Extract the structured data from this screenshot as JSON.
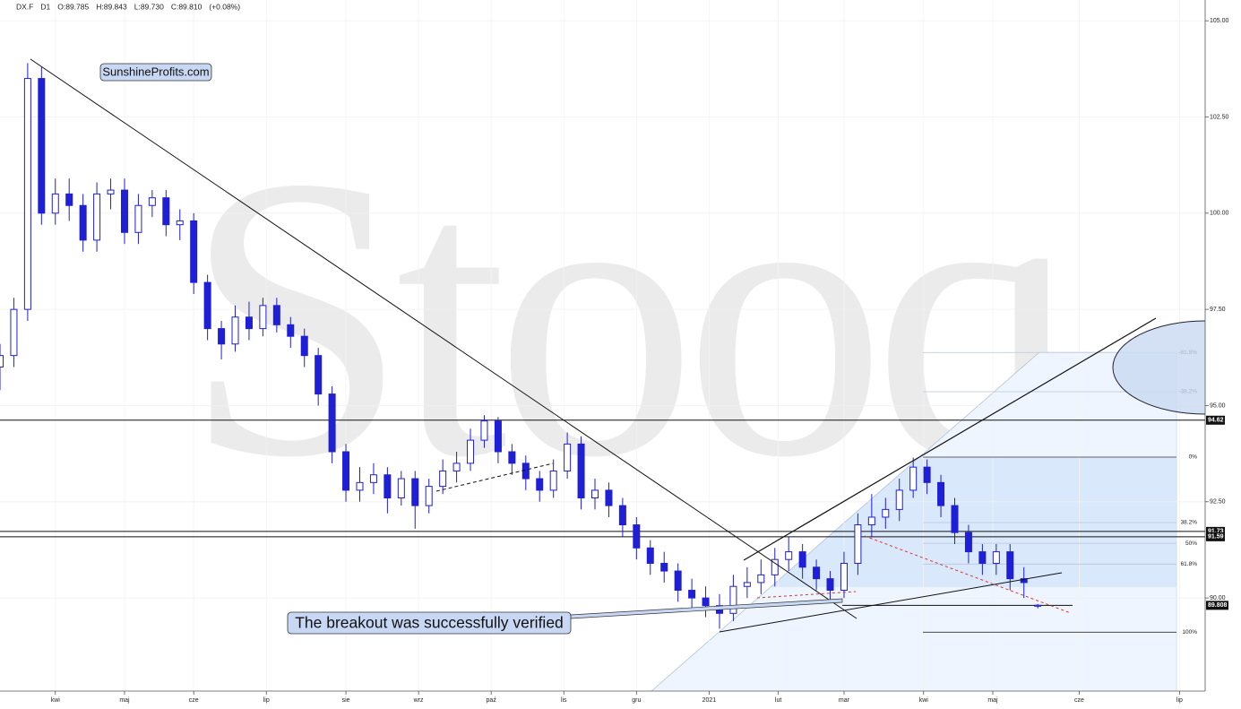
{
  "chart_data": {
    "type": "candlestick",
    "header": {
      "symbol": "DX.F",
      "interval": "D1",
      "ohlc_text": [
        "O:89.785",
        "H:89.843",
        "L:89.730",
        "C:89.810",
        "(+0.08%)"
      ]
    },
    "watermark": "Stooq",
    "annotations": [
      "SunshineProfits.com",
      "The breakout was successfully verified"
    ],
    "color": "#1f1fd6",
    "grid": true,
    "ylim": [
      87.58,
      105.54
    ],
    "yticks": [
      {
        "value": 90,
        "label": "90.00"
      },
      {
        "value": 92.5,
        "label": "92.50"
      },
      {
        "value": 95,
        "label": "95.00"
      },
      {
        "value": 97.5,
        "label": "97.50"
      },
      {
        "value": 100,
        "label": "100.00"
      },
      {
        "value": 102.5,
        "label": "102.50"
      },
      {
        "value": 105,
        "label": "105.00"
      }
    ],
    "xlim": [
      -16,
      332.4
    ],
    "xticks": [
      {
        "value": 0,
        "label": "kwi"
      },
      {
        "value": 20,
        "label": "maj"
      },
      {
        "value": 40,
        "label": "cze"
      },
      {
        "value": 61,
        "label": "lip"
      },
      {
        "value": 84,
        "label": "sie"
      },
      {
        "value": 105,
        "label": "wrz"
      },
      {
        "value": 126,
        "label": "paź"
      },
      {
        "value": 147,
        "label": "lis"
      },
      {
        "value": 168,
        "label": "gru"
      },
      {
        "value": 189,
        "label": "2021"
      },
      {
        "value": 209,
        "label": "lut"
      },
      {
        "value": 228,
        "label": "mar"
      },
      {
        "value": 251,
        "label": "kwi"
      },
      {
        "value": 271,
        "label": "maj"
      },
      {
        "value": 296,
        "label": "cze"
      },
      {
        "value": 325,
        "label": "lip"
      }
    ],
    "levels": [
      94.62,
      91.73,
      91.59
    ],
    "last_price": 89.808,
    "fib_levels": [
      {
        "value": 96.38,
        "label": "-61.8%"
      },
      {
        "value": 95.36,
        "label": "-38.2%"
      },
      {
        "value": 93.66,
        "label": "0%"
      },
      {
        "value": 91.96,
        "label": "38.2%"
      },
      {
        "value": 91.42,
        "label": "50%"
      },
      {
        "value": 90.88,
        "label": "61.8%"
      },
      {
        "value": 89.11,
        "label": "100%"
      }
    ],
    "x": [
      -16,
      -12,
      -8,
      -4,
      0,
      4,
      8,
      12,
      16,
      20,
      24,
      28,
      32,
      36,
      40,
      44,
      48,
      52,
      56,
      60,
      64,
      68,
      72,
      76,
      80,
      84,
      88,
      92,
      96,
      100,
      104,
      108,
      112,
      116,
      120,
      124,
      128,
      132,
      136,
      140,
      144,
      148,
      152,
      156,
      160,
      164,
      168,
      172,
      176,
      180,
      184,
      188,
      192,
      196,
      200,
      204,
      208,
      212,
      216,
      220,
      224,
      228,
      232,
      236,
      240,
      244,
      248,
      252,
      256,
      260,
      264,
      268,
      272,
      276,
      280,
      284
    ],
    "open": [
      96.0,
      96.3,
      97.5,
      103.5,
      100.0,
      100.5,
      100.2,
      99.3,
      100.5,
      100.6,
      99.5,
      100.2,
      100.4,
      99.7,
      99.8,
      98.2,
      97.0,
      96.6,
      97.3,
      97.0,
      97.6,
      97.1,
      96.8,
      96.3,
      95.3,
      93.8,
      92.8,
      93.0,
      93.2,
      92.6,
      93.1,
      92.4,
      92.9,
      93.3,
      93.5,
      94.1,
      94.6,
      93.8,
      93.5,
      93.1,
      92.8,
      93.3,
      94.0,
      92.6,
      92.8,
      92.4,
      91.9,
      91.3,
      90.9,
      90.7,
      90.2,
      90.0,
      89.8,
      89.6,
      90.3,
      90.4,
      90.6,
      91.0,
      91.2,
      90.8,
      90.5,
      90.2,
      90.9,
      91.9,
      92.1,
      92.3,
      92.8,
      93.4,
      93.0,
      92.4,
      91.7,
      91.2,
      90.9,
      91.2,
      90.5,
      89.785
    ],
    "high": [
      96.6,
      97.8,
      103.9,
      103.8,
      100.9,
      100.9,
      100.5,
      100.8,
      100.9,
      100.9,
      100.5,
      100.6,
      100.6,
      100.1,
      100.0,
      98.4,
      97.2,
      97.6,
      97.7,
      97.8,
      97.8,
      97.3,
      97.0,
      96.5,
      95.5,
      94.0,
      93.4,
      93.5,
      93.4,
      93.3,
      93.3,
      93.1,
      93.6,
      93.8,
      94.4,
      94.75,
      94.7,
      94.0,
      93.7,
      93.3,
      93.6,
      94.3,
      94.2,
      93.1,
      93.0,
      92.6,
      92.1,
      91.5,
      91.2,
      90.9,
      90.5,
      90.3,
      90.1,
      90.6,
      90.8,
      91.0,
      91.3,
      91.6,
      91.4,
      91.0,
      90.7,
      91.2,
      92.2,
      92.7,
      92.6,
      93.1,
      93.65,
      93.6,
      93.2,
      92.6,
      91.9,
      91.4,
      91.4,
      91.4,
      90.8,
      89.843
    ],
    "low": [
      95.4,
      96.0,
      97.2,
      99.7,
      99.7,
      99.8,
      99.0,
      99.0,
      100.1,
      99.2,
      99.2,
      99.9,
      99.4,
      99.3,
      97.9,
      96.7,
      96.2,
      96.4,
      96.7,
      96.8,
      96.9,
      96.5,
      96.0,
      95.0,
      93.5,
      92.5,
      92.5,
      92.7,
      92.2,
      92.4,
      91.8,
      92.2,
      92.7,
      93.0,
      93.3,
      93.9,
      93.5,
      93.2,
      92.8,
      92.5,
      92.6,
      93.1,
      92.3,
      92.3,
      92.1,
      91.6,
      91.0,
      90.6,
      90.4,
      89.9,
      89.7,
      89.5,
      89.2,
      89.4,
      90.0,
      90.1,
      90.3,
      90.7,
      90.5,
      90.2,
      89.9,
      90.0,
      90.6,
      91.6,
      91.8,
      92.0,
      92.6,
      92.7,
      92.1,
      91.4,
      90.9,
      90.6,
      90.6,
      90.2,
      90.0,
      89.73
    ],
    "close": [
      96.3,
      97.5,
      103.5,
      100.0,
      100.5,
      100.2,
      99.3,
      100.5,
      100.6,
      99.5,
      100.2,
      100.4,
      99.7,
      99.8,
      98.2,
      97.0,
      96.6,
      97.3,
      97.0,
      97.6,
      97.1,
      96.8,
      96.3,
      95.3,
      93.8,
      92.8,
      93.0,
      93.2,
      92.6,
      93.1,
      92.4,
      92.9,
      93.3,
      93.5,
      94.1,
      94.6,
      93.8,
      93.5,
      93.1,
      92.8,
      93.3,
      94.0,
      92.6,
      92.8,
      92.4,
      91.9,
      91.3,
      90.9,
      90.7,
      90.2,
      90.0,
      89.8,
      89.6,
      90.3,
      90.4,
      90.6,
      91.0,
      91.2,
      90.8,
      90.5,
      90.2,
      90.9,
      91.9,
      92.1,
      92.3,
      92.8,
      93.4,
      93.0,
      92.4,
      91.7,
      91.2,
      90.9,
      91.2,
      90.5,
      90.4,
      89.81
    ]
  }
}
